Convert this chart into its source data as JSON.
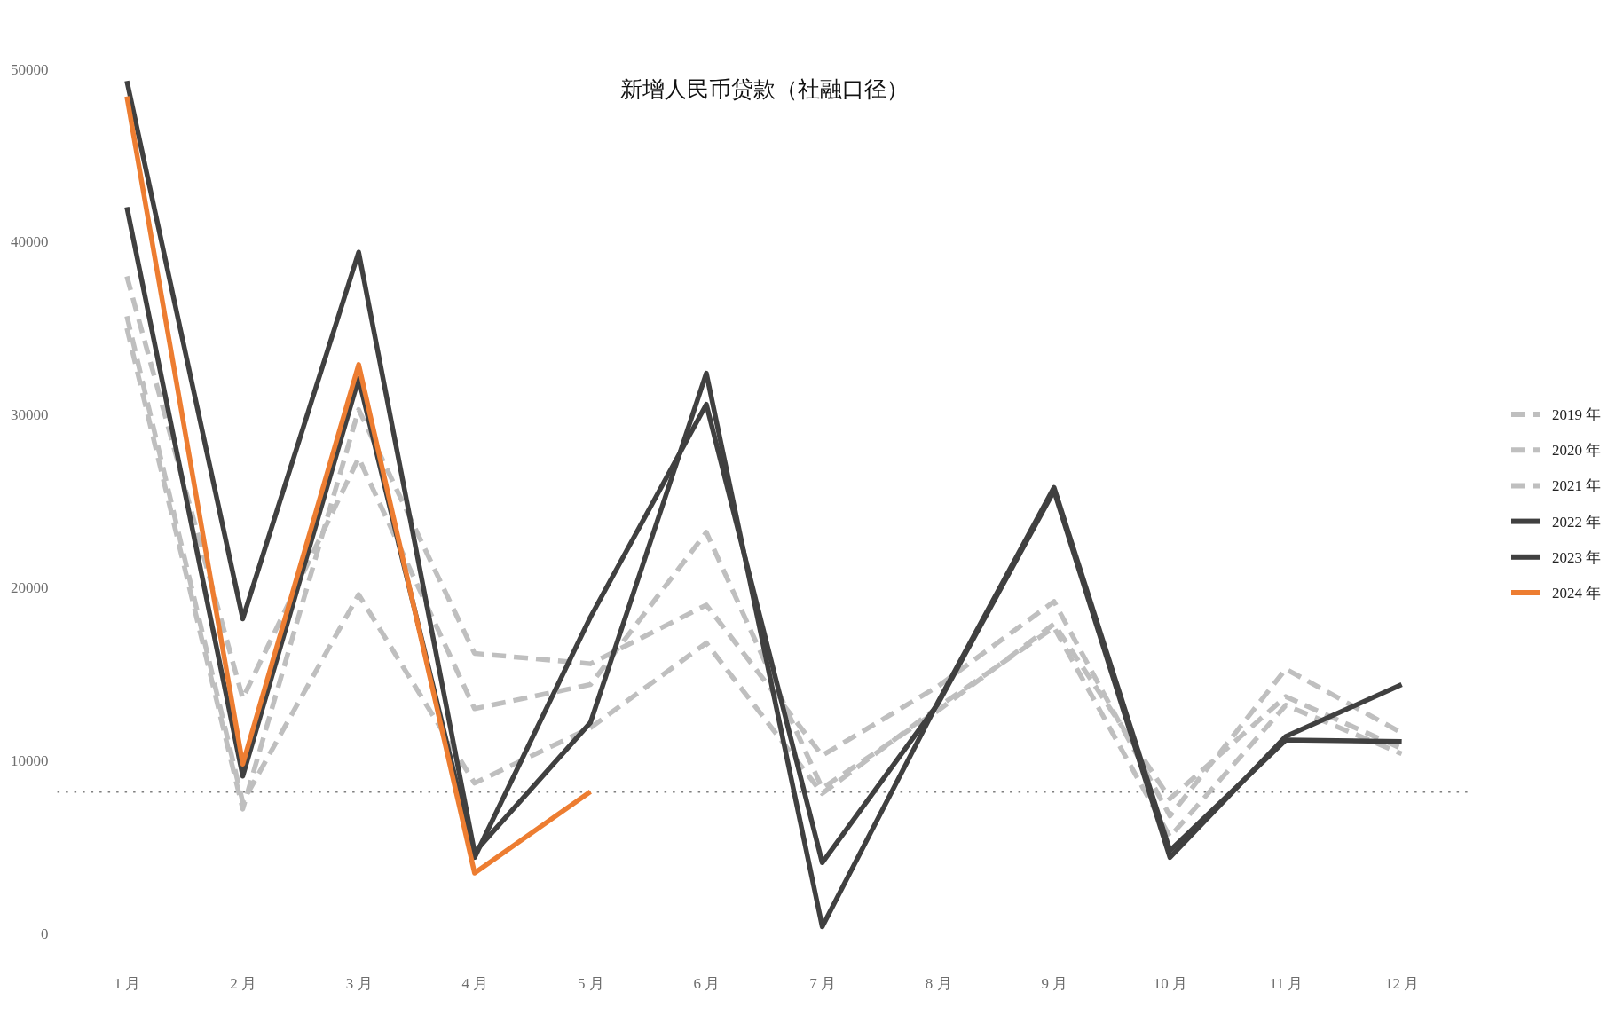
{
  "chart_data": {
    "type": "line",
    "title": "新增人民币贷款（社融口径）",
    "categories": [
      "1 月",
      "2 月",
      "3 月",
      "4 月",
      "5 月",
      "6 月",
      "7 月",
      "8 月",
      "9 月",
      "10 月",
      "11 月",
      "12 月"
    ],
    "series": [
      {
        "name": "2019 年",
        "color": "#bfbfbf",
        "line_style": "dashed",
        "values": [
          35700,
          7600,
          19600,
          8700,
          11900,
          16800,
          8100,
          13100,
          17700,
          5600,
          13200,
          10400
        ]
      },
      {
        "name": "2020 年",
        "color": "#bfbfbf",
        "line_style": "dashed",
        "values": [
          35000,
          7200,
          30300,
          16200,
          15600,
          19000,
          10300,
          14300,
          19200,
          6800,
          15300,
          11600
        ]
      },
      {
        "name": "2021 年",
        "color": "#bfbfbf",
        "line_style": "dashed",
        "values": [
          38000,
          13600,
          27500,
          13000,
          14400,
          23200,
          8400,
          12900,
          17900,
          7800,
          13700,
          10700
        ]
      },
      {
        "name": "2022 年",
        "color": "#404040",
        "line_style": "solid",
        "values": [
          42000,
          9100,
          32100,
          4400,
          18300,
          30600,
          4100,
          13300,
          25600,
          4400,
          11400,
          14400
        ]
      },
      {
        "name": "2023 年",
        "color": "#404040",
        "line_style": "solid",
        "values": [
          49300,
          18200,
          39400,
          4700,
          12200,
          32400,
          400,
          13400,
          25800,
          4800,
          11200,
          11100
        ]
      },
      {
        "name": "2024 年",
        "color": "#ed7d31",
        "line_style": "solid",
        "values": [
          48400,
          9800,
          32900,
          3500,
          8200,
          null,
          null,
          null,
          null,
          null,
          null,
          null
        ]
      }
    ],
    "ylim": [
      0,
      50000
    ],
    "yticks": [
      0,
      10000,
      20000,
      30000,
      40000,
      50000
    ],
    "ref_lines": [
      {
        "axis": "y",
        "value": 8200,
        "color": "#808080",
        "line_style": "dotted"
      }
    ],
    "legend": "right"
  }
}
